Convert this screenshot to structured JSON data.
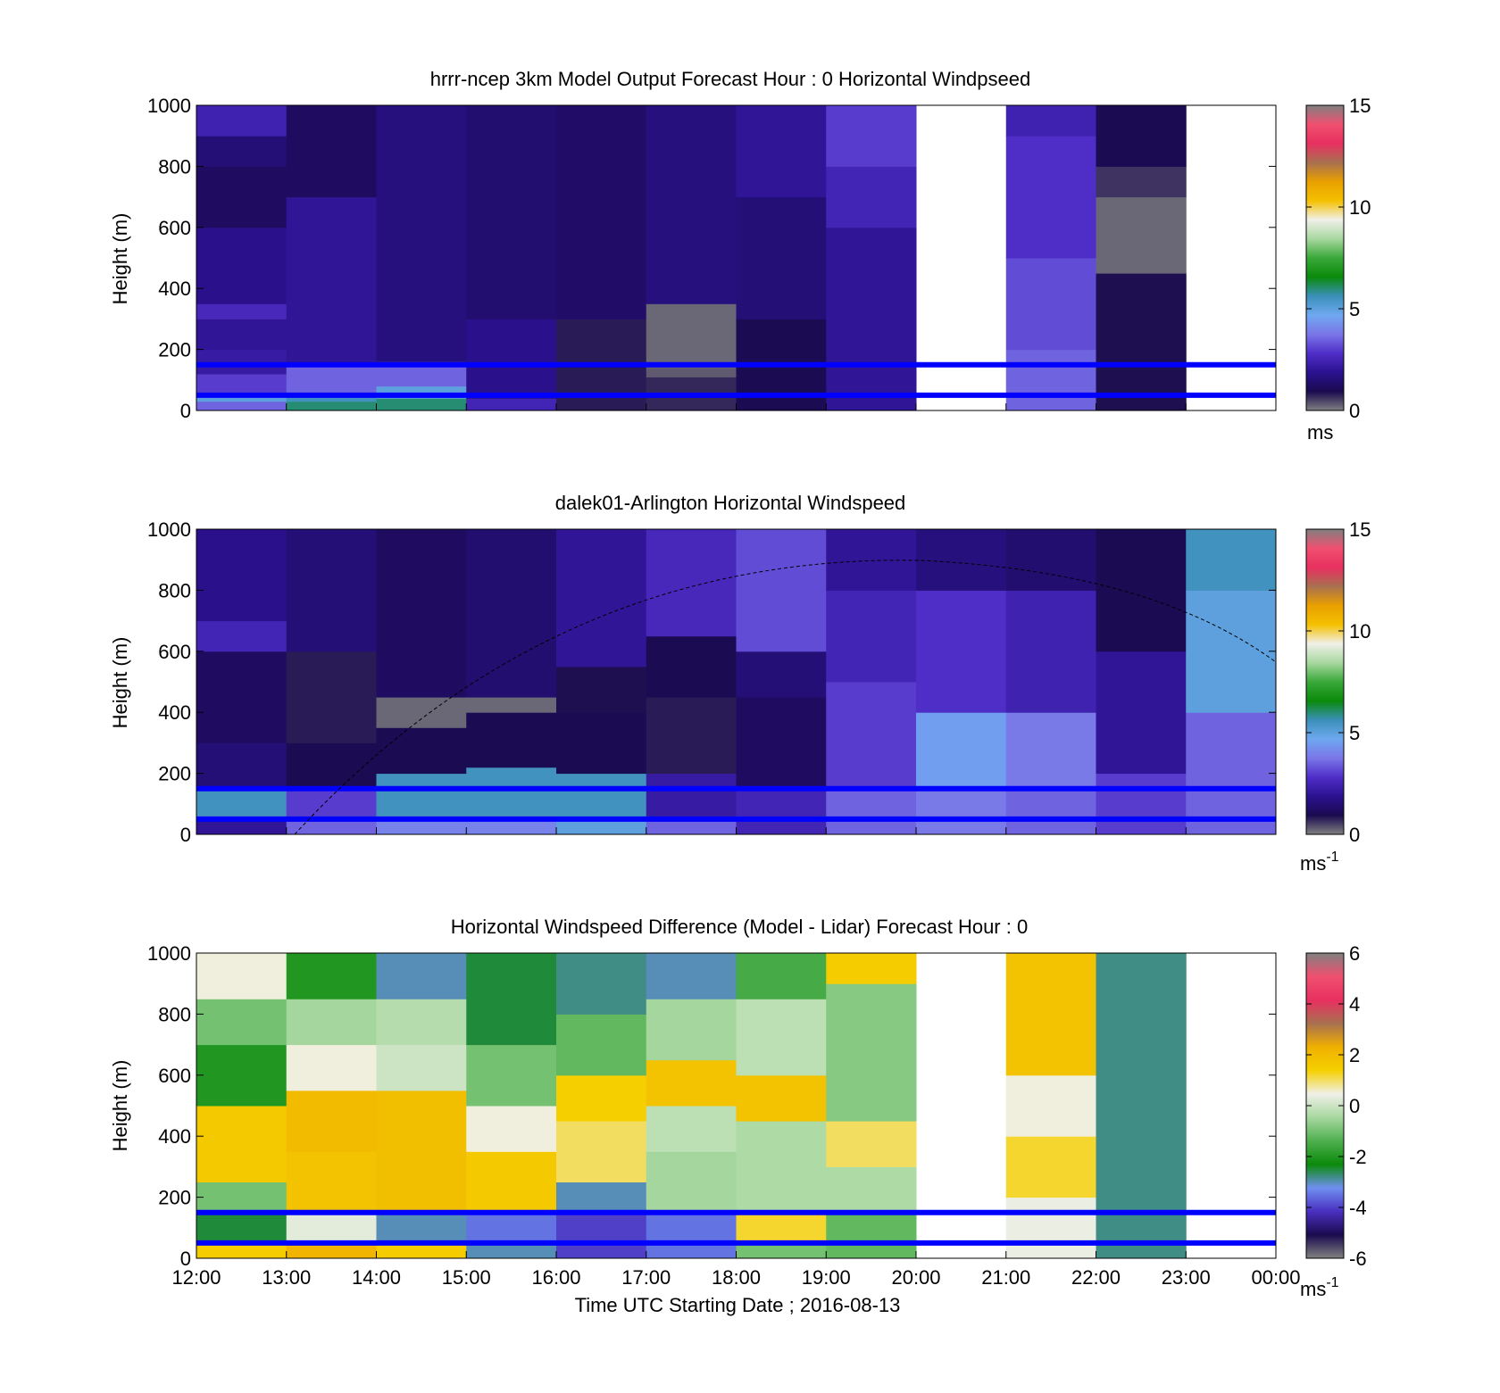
{
  "figure": {
    "xlabel": "Time UTC  Starting Date ; 2016-08-13",
    "x_tick_labels": [
      "12:00",
      "13:00",
      "14:00",
      "15:00",
      "16:00",
      "17:00",
      "18:00",
      "19:00",
      "20:00",
      "21:00",
      "22:00",
      "23:00",
      "00:00"
    ]
  },
  "colormaps": {
    "windspeed": [
      "#808080",
      "#1a0a4f",
      "#2b1290",
      "#4f2ec8",
      "#7a76e8",
      "#6fa8f0",
      "#3a8fb8",
      "#0a8a0a",
      "#3aa83a",
      "#a8d8a0",
      "#f0f0e8",
      "#f5c000",
      "#e8a000",
      "#a87050",
      "#e83060",
      "#f05070",
      "#808080"
    ],
    "difference": [
      "#808080",
      "#1a0a4f",
      "#4a30c0",
      "#6f8ff0",
      "#0a8a0a",
      "#4fb04f",
      "#a8d8a0",
      "#f0f0e8",
      "#f5d000",
      "#f0b000",
      "#a87050",
      "#e83060",
      "#f05070",
      "#808080"
    ]
  },
  "chart_data": [
    {
      "type": "heatmap",
      "title": "hrrr-ncep 3km Model Output   Forecast Hour : 0 Horizontal Windpseed",
      "ylabel": "Height (m)",
      "ylim": [
        0,
        1000
      ],
      "y_ticks": [
        0,
        200,
        400,
        600,
        800,
        1000
      ],
      "x_hours": [
        12,
        24
      ],
      "colorbar": {
        "ticks": [
          0,
          5,
          10,
          15
        ],
        "unit": "ms",
        "range": [
          0,
          15
        ],
        "map": "windspeed"
      },
      "reference_lines_m": [
        50,
        150
      ],
      "columns": [
        {
          "hour": 12,
          "bands": [
            [
              0,
              30,
              3.5
            ],
            [
              30,
              60,
              5
            ],
            [
              60,
              120,
              3
            ],
            [
              120,
              200,
              2.2
            ],
            [
              200,
              300,
              2
            ],
            [
              300,
              350,
              2.6
            ],
            [
              350,
              600,
              1.8
            ],
            [
              600,
              800,
              1.2
            ],
            [
              800,
              900,
              1.5
            ],
            [
              900,
              1000,
              2.4
            ]
          ]
        },
        {
          "hour": 13,
          "bands": [
            [
              0,
              30,
              6
            ],
            [
              30,
              60,
              5.5
            ],
            [
              60,
              150,
              3.5
            ],
            [
              150,
              700,
              2
            ],
            [
              700,
              1000,
              1.2
            ]
          ]
        },
        {
          "hour": 14,
          "bands": [
            [
              0,
              40,
              6
            ],
            [
              40,
              80,
              5
            ],
            [
              80,
              160,
              3.5
            ],
            [
              160,
              1000,
              1.6
            ]
          ]
        },
        {
          "hour": 15,
          "bands": [
            [
              0,
              40,
              2.5
            ],
            [
              40,
              300,
              1.8
            ],
            [
              300,
              1000,
              1.4
            ]
          ]
        },
        {
          "hour": 16,
          "bands": [
            [
              0,
              300,
              0.8
            ],
            [
              300,
              1000,
              1.3
            ]
          ]
        },
        {
          "hour": 17,
          "bands": [
            [
              0,
              110,
              0.7
            ],
            [
              110,
              140,
              0.3
            ],
            [
              140,
              350,
              0.2
            ],
            [
              350,
              1000,
              1.6
            ]
          ]
        },
        {
          "hour": 18,
          "bands": [
            [
              0,
              300,
              1
            ],
            [
              300,
              700,
              1.5
            ],
            [
              700,
              1000,
              2
            ]
          ]
        },
        {
          "hour": 19,
          "bands": [
            [
              0,
              600,
              2
            ],
            [
              600,
              800,
              2.5
            ],
            [
              800,
              1000,
              3
            ]
          ]
        },
        {
          "hour": 21,
          "bands": [
            [
              0,
              200,
              3.5
            ],
            [
              200,
              500,
              3.2
            ],
            [
              500,
              900,
              2.8
            ],
            [
              900,
              1000,
              2.4
            ]
          ]
        },
        {
          "hour": 22,
          "bands": [
            [
              0,
              450,
              0.9
            ],
            [
              450,
              700,
              0.2
            ],
            [
              700,
              800,
              0.6
            ],
            [
              800,
              1000,
              1
            ]
          ]
        }
      ]
    },
    {
      "type": "heatmap",
      "title": "dalek01-Arlington  Horizontal Windspeed",
      "ylabel": "Height (m)",
      "ylim": [
        0,
        1000
      ],
      "y_ticks": [
        0,
        200,
        400,
        600,
        800,
        1000
      ],
      "x_hours": [
        12,
        24
      ],
      "colorbar": {
        "ticks": [
          0,
          5,
          10,
          15
        ],
        "unit": "ms-1",
        "range": [
          0,
          15
        ],
        "map": "windspeed"
      },
      "reference_lines_m": [
        50,
        150
      ],
      "columns": [
        {
          "hour": 12,
          "bands": [
            [
              0,
              60,
              2
            ],
            [
              60,
              150,
              5.5
            ],
            [
              150,
              300,
              1.5
            ],
            [
              300,
              600,
              1.2
            ],
            [
              600,
              700,
              2.5
            ],
            [
              700,
              1000,
              1.8
            ]
          ]
        },
        {
          "hour": 13,
          "bands": [
            [
              0,
              60,
              3.5
            ],
            [
              60,
              150,
              3
            ],
            [
              150,
              300,
              1
            ],
            [
              300,
              600,
              0.8
            ],
            [
              600,
              1000,
              1.5
            ]
          ]
        },
        {
          "hour": 14,
          "bands": [
            [
              0,
              60,
              4
            ],
            [
              60,
              200,
              5.5
            ],
            [
              200,
              350,
              1
            ],
            [
              350,
              450,
              0.2
            ],
            [
              450,
              1000,
              1.2
            ]
          ]
        },
        {
          "hour": 15,
          "bands": [
            [
              0,
              60,
              4
            ],
            [
              60,
              220,
              5.5
            ],
            [
              220,
              400,
              1
            ],
            [
              400,
              450,
              0.2
            ],
            [
              450,
              1000,
              1.4
            ]
          ]
        },
        {
          "hour": 16,
          "bands": [
            [
              0,
              60,
              5
            ],
            [
              60,
              200,
              5.5
            ],
            [
              200,
              400,
              1
            ],
            [
              400,
              550,
              0.9
            ],
            [
              550,
              1000,
              2
            ]
          ]
        },
        {
          "hour": 17,
          "bands": [
            [
              0,
              60,
              3.5
            ],
            [
              60,
              200,
              2.2
            ],
            [
              200,
              450,
              0.8
            ],
            [
              450,
              650,
              1
            ],
            [
              650,
              1000,
              2.6
            ]
          ]
        },
        {
          "hour": 18,
          "bands": [
            [
              0,
              150,
              2.5
            ],
            [
              150,
              450,
              1.2
            ],
            [
              450,
              600,
              1.5
            ],
            [
              600,
              1000,
              3.2
            ]
          ]
        },
        {
          "hour": 19,
          "bands": [
            [
              0,
              150,
              3.5
            ],
            [
              150,
              500,
              3
            ],
            [
              500,
              800,
              2.5
            ],
            [
              800,
              1000,
              2
            ]
          ]
        },
        {
          "hour": 20,
          "bands": [
            [
              0,
              150,
              3.8
            ],
            [
              150,
              400,
              4.5
            ],
            [
              400,
              800,
              2.8
            ],
            [
              800,
              1000,
              1.6
            ]
          ]
        },
        {
          "hour": 21,
          "bands": [
            [
              0,
              150,
              3.5
            ],
            [
              150,
              400,
              3.8
            ],
            [
              400,
              800,
              2.4
            ],
            [
              800,
              1000,
              1.4
            ]
          ]
        },
        {
          "hour": 22,
          "bands": [
            [
              0,
              200,
              3
            ],
            [
              200,
              600,
              2
            ],
            [
              600,
              1000,
              1
            ]
          ]
        },
        {
          "hour": 23,
          "bands": [
            [
              0,
              400,
              3.5
            ],
            [
              400,
              800,
              5
            ],
            [
              800,
              1000,
              5.5
            ]
          ]
        }
      ]
    },
    {
      "type": "heatmap",
      "title": "Horizontal Windspeed Difference (Model - Lidar) Forecast Hour : 0",
      "ylabel": "Height (m)",
      "ylim": [
        0,
        1000
      ],
      "y_ticks": [
        0,
        200,
        400,
        600,
        800,
        1000
      ],
      "x_hours": [
        12,
        24
      ],
      "colorbar": {
        "ticks": [
          -6,
          -4,
          -2,
          0,
          2,
          4,
          6
        ],
        "unit": "ms-1",
        "range": [
          -6,
          6
        ],
        "map": "difference"
      },
      "reference_lines_m": [
        50,
        150
      ],
      "columns": [
        {
          "hour": 12,
          "bands": [
            [
              0,
              50,
              1.5
            ],
            [
              50,
              150,
              -2.5
            ],
            [
              150,
              250,
              -1
            ],
            [
              250,
              500,
              1.6
            ],
            [
              500,
              700,
              -2
            ],
            [
              700,
              850,
              -1
            ],
            [
              850,
              1000,
              0.5
            ]
          ]
        },
        {
          "hour": 13,
          "bands": [
            [
              0,
              50,
              2.2
            ],
            [
              50,
              150,
              0.3
            ],
            [
              150,
              350,
              1.8
            ],
            [
              350,
              550,
              2
            ],
            [
              550,
              700,
              0.5
            ],
            [
              700,
              850,
              -0.5
            ],
            [
              850,
              1000,
              -2
            ]
          ]
        },
        {
          "hour": 14,
          "bands": [
            [
              0,
              50,
              1.5
            ],
            [
              50,
              150,
              -3
            ],
            [
              150,
              550,
              1.9
            ],
            [
              550,
              700,
              0
            ],
            [
              700,
              850,
              -0.3
            ],
            [
              850,
              1000,
              -3
            ]
          ]
        },
        {
          "hour": 15,
          "bands": [
            [
              0,
              50,
              -3
            ],
            [
              50,
              150,
              -3.5
            ],
            [
              150,
              350,
              1.6
            ],
            [
              350,
              500,
              0.5
            ],
            [
              500,
              700,
              -1
            ],
            [
              700,
              1000,
              -2.5
            ]
          ]
        },
        {
          "hour": 16,
          "bands": [
            [
              0,
              150,
              -4
            ],
            [
              150,
              250,
              -3
            ],
            [
              250,
              450,
              1
            ],
            [
              450,
              600,
              1.4
            ],
            [
              600,
              800,
              -1.2
            ],
            [
              800,
              1000,
              -2.8
            ]
          ]
        },
        {
          "hour": 17,
          "bands": [
            [
              0,
              150,
              -3.5
            ],
            [
              150,
              350,
              -0.5
            ],
            [
              350,
              500,
              -0.2
            ],
            [
              500,
              650,
              1.8
            ],
            [
              650,
              850,
              -0.5
            ],
            [
              850,
              1000,
              -3
            ]
          ]
        },
        {
          "hour": 18,
          "bands": [
            [
              0,
              50,
              -1
            ],
            [
              50,
              150,
              1.2
            ],
            [
              150,
              450,
              -0.4
            ],
            [
              450,
              600,
              1.8
            ],
            [
              600,
              850,
              -0.2
            ],
            [
              850,
              1000,
              -1.5
            ]
          ]
        },
        {
          "hour": 19,
          "bands": [
            [
              0,
              150,
              -1.2
            ],
            [
              150,
              300,
              -0.4
            ],
            [
              300,
              450,
              1
            ],
            [
              450,
              900,
              -0.8
            ],
            [
              900,
              1000,
              1.5
            ]
          ]
        },
        {
          "hour": 21,
          "bands": [
            [
              0,
              200,
              0.4
            ],
            [
              200,
              400,
              1.2
            ],
            [
              400,
              600,
              0.5
            ],
            [
              600,
              1000,
              1.8
            ]
          ]
        },
        {
          "hour": 22,
          "bands": [
            [
              0,
              1000,
              -2.8
            ]
          ]
        }
      ]
    }
  ]
}
